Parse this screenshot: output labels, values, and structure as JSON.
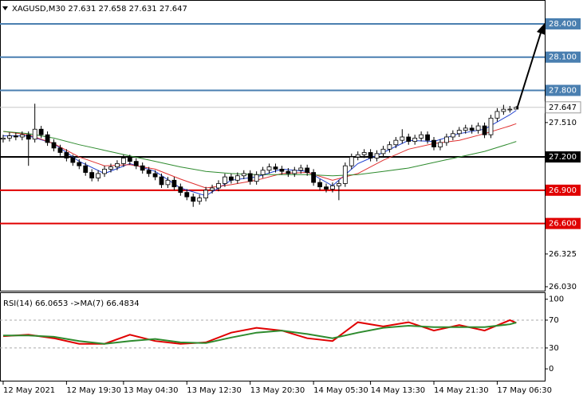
{
  "chart_data": [
    {
      "type": "candlestick",
      "title": "XAGUSD,M30  27.631 27.658 27.631 27.647",
      "up_color": "#ffffff",
      "down_color": "#000000",
      "wick_color": "#000000",
      "open": [
        27.36,
        27.37,
        27.39,
        27.38,
        27.4,
        27.36,
        27.45,
        27.4,
        27.33,
        27.28,
        27.24,
        27.19,
        27.15,
        27.12,
        27.06,
        27.01,
        27.05,
        27.09,
        27.11,
        27.14,
        27.19,
        27.16,
        27.12,
        27.08,
        27.05,
        27.02,
        26.95,
        26.99,
        26.93,
        26.88,
        26.84,
        26.8,
        26.83,
        26.9,
        26.92,
        26.96,
        27.02,
        26.99,
        27.03,
        27.05,
        26.98,
        27.04,
        27.08,
        27.11,
        27.09,
        27.07,
        27.05,
        27.08,
        27.1,
        27.06,
        26.97,
        26.93,
        26.91,
        26.94,
        26.96,
        27.12,
        27.2,
        27.22,
        27.24,
        27.19,
        27.23,
        27.27,
        27.31,
        27.35,
        27.38,
        27.34,
        27.37,
        27.4,
        27.35,
        27.29,
        27.33,
        27.38,
        27.41,
        27.44,
        27.46,
        27.44,
        27.48,
        27.4,
        27.55,
        27.61,
        27.63,
        27.631
      ],
      "high": [
        27.4,
        27.42,
        27.42,
        27.43,
        27.43,
        27.68,
        27.48,
        27.43,
        27.36,
        27.31,
        27.27,
        27.22,
        27.18,
        27.15,
        27.09,
        27.08,
        27.12,
        27.14,
        27.17,
        27.22,
        27.22,
        27.19,
        27.15,
        27.11,
        27.08,
        27.05,
        27.02,
        27.02,
        26.96,
        26.91,
        26.87,
        26.86,
        26.93,
        26.95,
        26.99,
        27.05,
        27.05,
        27.06,
        27.08,
        27.08,
        27.07,
        27.11,
        27.14,
        27.14,
        27.12,
        27.1,
        27.11,
        27.13,
        27.13,
        27.09,
        27.0,
        26.96,
        26.97,
        26.99,
        27.15,
        27.23,
        27.25,
        27.27,
        27.27,
        27.26,
        27.3,
        27.34,
        27.38,
        27.45,
        27.41,
        27.4,
        27.43,
        27.43,
        27.38,
        27.36,
        27.41,
        27.44,
        27.47,
        27.49,
        27.49,
        27.51,
        27.51,
        27.58,
        27.64,
        27.67,
        27.66,
        27.658
      ],
      "low": [
        27.33,
        27.34,
        27.35,
        27.35,
        27.12,
        27.33,
        27.37,
        27.3,
        27.25,
        27.21,
        27.16,
        27.12,
        27.09,
        27.03,
        26.98,
        26.98,
        27.02,
        27.06,
        27.08,
        27.11,
        27.13,
        27.09,
        27.05,
        27.02,
        26.99,
        26.92,
        26.92,
        26.9,
        26.85,
        26.81,
        26.75,
        26.77,
        26.8,
        26.87,
        26.89,
        26.93,
        26.96,
        26.96,
        27.0,
        26.95,
        26.95,
        27.01,
        27.05,
        27.06,
        27.04,
        27.02,
        27.02,
        27.05,
        27.03,
        26.94,
        26.9,
        26.88,
        26.88,
        26.81,
        26.93,
        27.09,
        27.17,
        27.19,
        27.16,
        27.16,
        27.2,
        27.24,
        27.28,
        27.32,
        27.31,
        27.31,
        27.34,
        27.32,
        27.26,
        27.26,
        27.3,
        27.35,
        27.38,
        27.41,
        27.41,
        27.41,
        27.37,
        27.37,
        27.52,
        27.58,
        27.6,
        27.631
      ],
      "close": [
        27.37,
        27.39,
        27.38,
        27.4,
        27.36,
        27.45,
        27.4,
        27.33,
        27.28,
        27.24,
        27.19,
        27.15,
        27.12,
        27.06,
        27.01,
        27.05,
        27.09,
        27.11,
        27.14,
        27.19,
        27.16,
        27.12,
        27.08,
        27.05,
        27.02,
        26.95,
        26.99,
        26.93,
        26.88,
        26.84,
        26.8,
        26.83,
        26.9,
        26.92,
        26.96,
        27.02,
        26.99,
        27.03,
        27.05,
        26.98,
        27.04,
        27.08,
        27.11,
        27.09,
        27.07,
        27.05,
        27.08,
        27.1,
        27.06,
        26.97,
        26.93,
        26.91,
        26.94,
        26.96,
        27.12,
        27.2,
        27.22,
        27.24,
        27.19,
        27.23,
        27.27,
        27.31,
        27.35,
        27.38,
        27.34,
        27.37,
        27.4,
        27.35,
        27.29,
        27.33,
        27.38,
        27.41,
        27.44,
        27.46,
        27.44,
        27.48,
        27.4,
        27.55,
        27.61,
        27.63,
        27.631,
        27.647
      ],
      "ma_x": [
        0,
        4,
        8,
        12,
        16,
        20,
        24,
        28,
        32,
        36,
        40,
        44,
        48,
        52,
        56,
        60,
        64,
        68,
        72,
        76,
        80,
        81
      ],
      "series": [
        {
          "color": "#1f3fcf",
          "values": [
            27.39,
            27.39,
            27.32,
            27.16,
            27.05,
            27.14,
            27.07,
            26.92,
            26.85,
            26.99,
            27.02,
            27.09,
            27.07,
            26.94,
            27.14,
            27.24,
            27.35,
            27.34,
            27.41,
            27.45,
            27.58,
            27.62
          ]
        },
        {
          "color": "#e03030",
          "values": [
            27.43,
            27.4,
            27.32,
            27.2,
            27.12,
            27.13,
            27.09,
            27.0,
            26.92,
            26.95,
            26.99,
            27.05,
            27.06,
            26.99,
            27.05,
            27.17,
            27.27,
            27.32,
            27.35,
            27.41,
            27.48,
            27.5
          ]
        },
        {
          "color": "#2e8b2e",
          "values": [
            27.43,
            27.41,
            27.37,
            27.31,
            27.26,
            27.21,
            27.16,
            27.11,
            27.07,
            27.05,
            27.04,
            27.04,
            27.04,
            27.03,
            27.04,
            27.07,
            27.1,
            27.15,
            27.2,
            27.25,
            27.32,
            27.34
          ]
        }
      ],
      "ylim": [
        25.994,
        28.615
      ],
      "yticks": [
        {
          "value": 27.51,
          "label": "27.510"
        },
        {
          "value": 26.325,
          "label": "26.325"
        },
        {
          "value": 26.03,
          "label": "26.030"
        }
      ],
      "levels": [
        {
          "value": 28.4,
          "label": "28.400",
          "color": "#4a7fb0"
        },
        {
          "value": 28.1,
          "label": "28.100",
          "color": "#4a7fb0"
        },
        {
          "value": 27.8,
          "label": "27.800",
          "color": "#4a7fb0"
        },
        {
          "value": 27.2,
          "label": "27.200",
          "color": "#000000"
        },
        {
          "value": 26.9,
          "label": "26.900",
          "color": "#e00000"
        },
        {
          "value": 26.6,
          "label": "26.600",
          "color": "#e00000"
        }
      ],
      "last_price": 27.647,
      "xlim": [
        -0.5,
        85.5
      ],
      "xticks": [
        {
          "value": 0,
          "label": "12 May 2021"
        },
        {
          "value": 10,
          "label": "12 May 19:30"
        },
        {
          "value": 19,
          "label": "13 May 04:30"
        },
        {
          "value": 29,
          "label": "13 May 12:30"
        },
        {
          "value": 39,
          "label": "13 May 20:30"
        },
        {
          "value": 49,
          "label": "14 May 05:30"
        },
        {
          "value": 58,
          "label": "14 May 13:30"
        },
        {
          "value": 68,
          "label": "14 May 21:30"
        },
        {
          "value": 78,
          "label": "17 May 06:30"
        }
      ]
    },
    {
      "type": "line",
      "title": "RSI(14) 66.0653  ->MA(7) 66.4834",
      "x": [
        0,
        4,
        8,
        12,
        16,
        20,
        24,
        28,
        32,
        36,
        40,
        44,
        48,
        52,
        56,
        60,
        64,
        68,
        72,
        76,
        80,
        81
      ],
      "series": [
        {
          "color": "#e00000",
          "values": [
            47,
            49,
            44,
            36,
            36,
            49,
            40,
            36,
            38,
            52,
            59,
            55,
            44,
            40,
            67,
            61,
            67,
            55,
            63,
            55,
            70,
            66.07
          ]
        },
        {
          "color": "#2e8b2e",
          "values": [
            48,
            48,
            46,
            40,
            36,
            40,
            43,
            38,
            37,
            45,
            52,
            55,
            50,
            44,
            52,
            59,
            62,
            60,
            60,
            60,
            64,
            66.48
          ]
        }
      ],
      "ylim": [
        -17,
        110
      ],
      "yticks": [
        0,
        30,
        70,
        100
      ],
      "levels": [
        70,
        30
      ]
    }
  ]
}
